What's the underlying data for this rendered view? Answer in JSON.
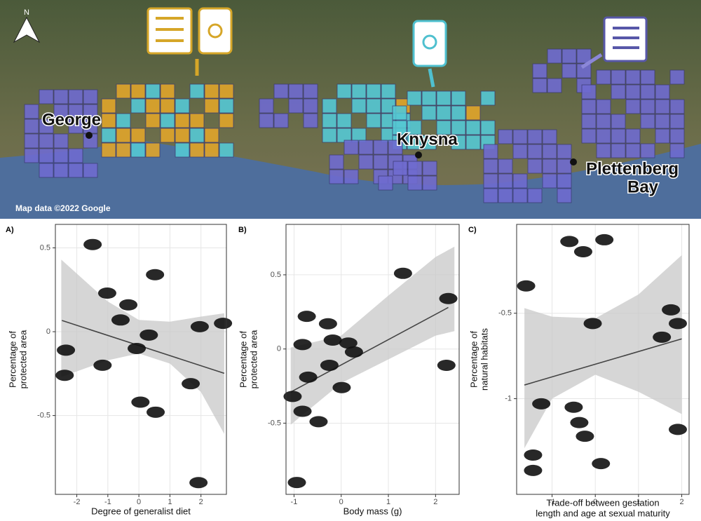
{
  "map": {
    "north": "N",
    "places": [
      "George",
      "Knysna",
      "Plettenberg",
      "Bay"
    ],
    "credit": "Map data ©2022 Google"
  },
  "chart_data": [
    {
      "type": "scatter",
      "panel": "A)",
      "xlabel": "Degree of generalist diet",
      "ylabel": [
        "Percentage of",
        "protected area"
      ],
      "x": [
        -1.49,
        0.52,
        -1.02,
        -0.34,
        -0.59,
        1.96,
        2.71,
        0.32,
        -0.07,
        -2.35,
        -1.17,
        -2.39,
        1.67,
        0.05,
        0.54,
        1.92
      ],
      "values": [
        0.52,
        0.34,
        0.23,
        0.16,
        0.07,
        0.03,
        0.05,
        -0.02,
        -0.1,
        -0.11,
        -0.2,
        -0.26,
        -0.31,
        -0.42,
        -0.48,
        -0.9
      ],
      "fit_x": [
        -2.48,
        2.75
      ],
      "fit_y": [
        0.067,
        -0.248
      ],
      "band_x": [
        -2.5,
        -1,
        0,
        1,
        2,
        2.75
      ],
      "band_upper": [
        0.43,
        0.18,
        0.07,
        0.06,
        0.09,
        0.11
      ],
      "band_lower": [
        -0.27,
        -0.17,
        -0.13,
        -0.19,
        -0.36,
        -0.61
      ],
      "xlim": [
        -2.69,
        2.82
      ],
      "ylim": [
        -0.97,
        0.64
      ],
      "xticks": [
        -2,
        -1,
        0,
        1,
        2
      ],
      "yticks": [
        -0.5,
        0.0,
        0.5
      ],
      "grid": true
    },
    {
      "type": "scatter",
      "panel": "B)",
      "xlabel": "Body mass (g)",
      "ylabel": [
        "Percentage of",
        "protected area"
      ],
      "x": [
        1.31,
        2.27,
        -0.73,
        -0.28,
        -0.82,
        -0.18,
        0.15,
        0.27,
        -0.25,
        -0.7,
        2.23,
        0.01,
        -1.03,
        -0.82,
        -0.48,
        -0.94
      ],
      "values": [
        0.51,
        0.34,
        0.22,
        0.17,
        0.03,
        0.06,
        0.04,
        -0.02,
        -0.11,
        -0.19,
        -0.11,
        -0.26,
        -0.32,
        -0.42,
        -0.49,
        -0.9
      ],
      "fit_x": [
        -1.07,
        2.27
      ],
      "fit_y": [
        -0.29,
        0.28
      ],
      "band_x": [
        -1.07,
        0,
        1,
        2,
        2.4
      ],
      "band_upper": [
        0.01,
        0.09,
        0.36,
        0.62,
        0.69
      ],
      "band_lower": [
        -0.51,
        -0.23,
        -0.07,
        0.09,
        0.12
      ],
      "xlim": [
        -1.17,
        2.5
      ],
      "ylim": [
        -0.98,
        0.84
      ],
      "xticks": [
        -1,
        0,
        1,
        2
      ],
      "yticks": [
        -0.5,
        0.0,
        0.5
      ],
      "grid": true
    },
    {
      "type": "scatter",
      "panel": "C)",
      "xlabel": [
        "Trade-off between gestation",
        "length and age at sexual maturity"
      ],
      "ylabel": [
        "Percentage of",
        "natural habitats"
      ],
      "x": [
        -0.6,
        0.21,
        -0.28,
        -1.6,
        1.75,
        -0.06,
        1.91,
        1.54,
        -1.25,
        -0.5,
        -0.37,
        -0.24,
        1.91,
        -1.44,
        -1.44,
        0.13
      ],
      "values": [
        -0.08,
        -0.07,
        -0.14,
        -0.34,
        -0.48,
        -0.56,
        -0.56,
        -0.64,
        -1.03,
        -1.05,
        -1.14,
        -1.22,
        -1.18,
        -1.33,
        -1.42,
        -1.38
      ],
      "fit_x": [
        -1.64,
        2.0
      ],
      "fit_y": [
        -0.92,
        -0.65
      ],
      "band_x": [
        -1.64,
        -1,
        0,
        1,
        2
      ],
      "band_upper": [
        -0.47,
        -0.52,
        -0.53,
        -0.39,
        -0.16
      ],
      "band_lower": [
        -1.29,
        -1.0,
        -0.86,
        -0.96,
        -1.09
      ],
      "xlim": [
        -1.82,
        2.17
      ],
      "ylim": [
        -1.56,
        0.02
      ],
      "xticks": [
        -1,
        0,
        1,
        2
      ],
      "yticks": [
        -1.0,
        -0.5
      ],
      "grid": true
    }
  ]
}
